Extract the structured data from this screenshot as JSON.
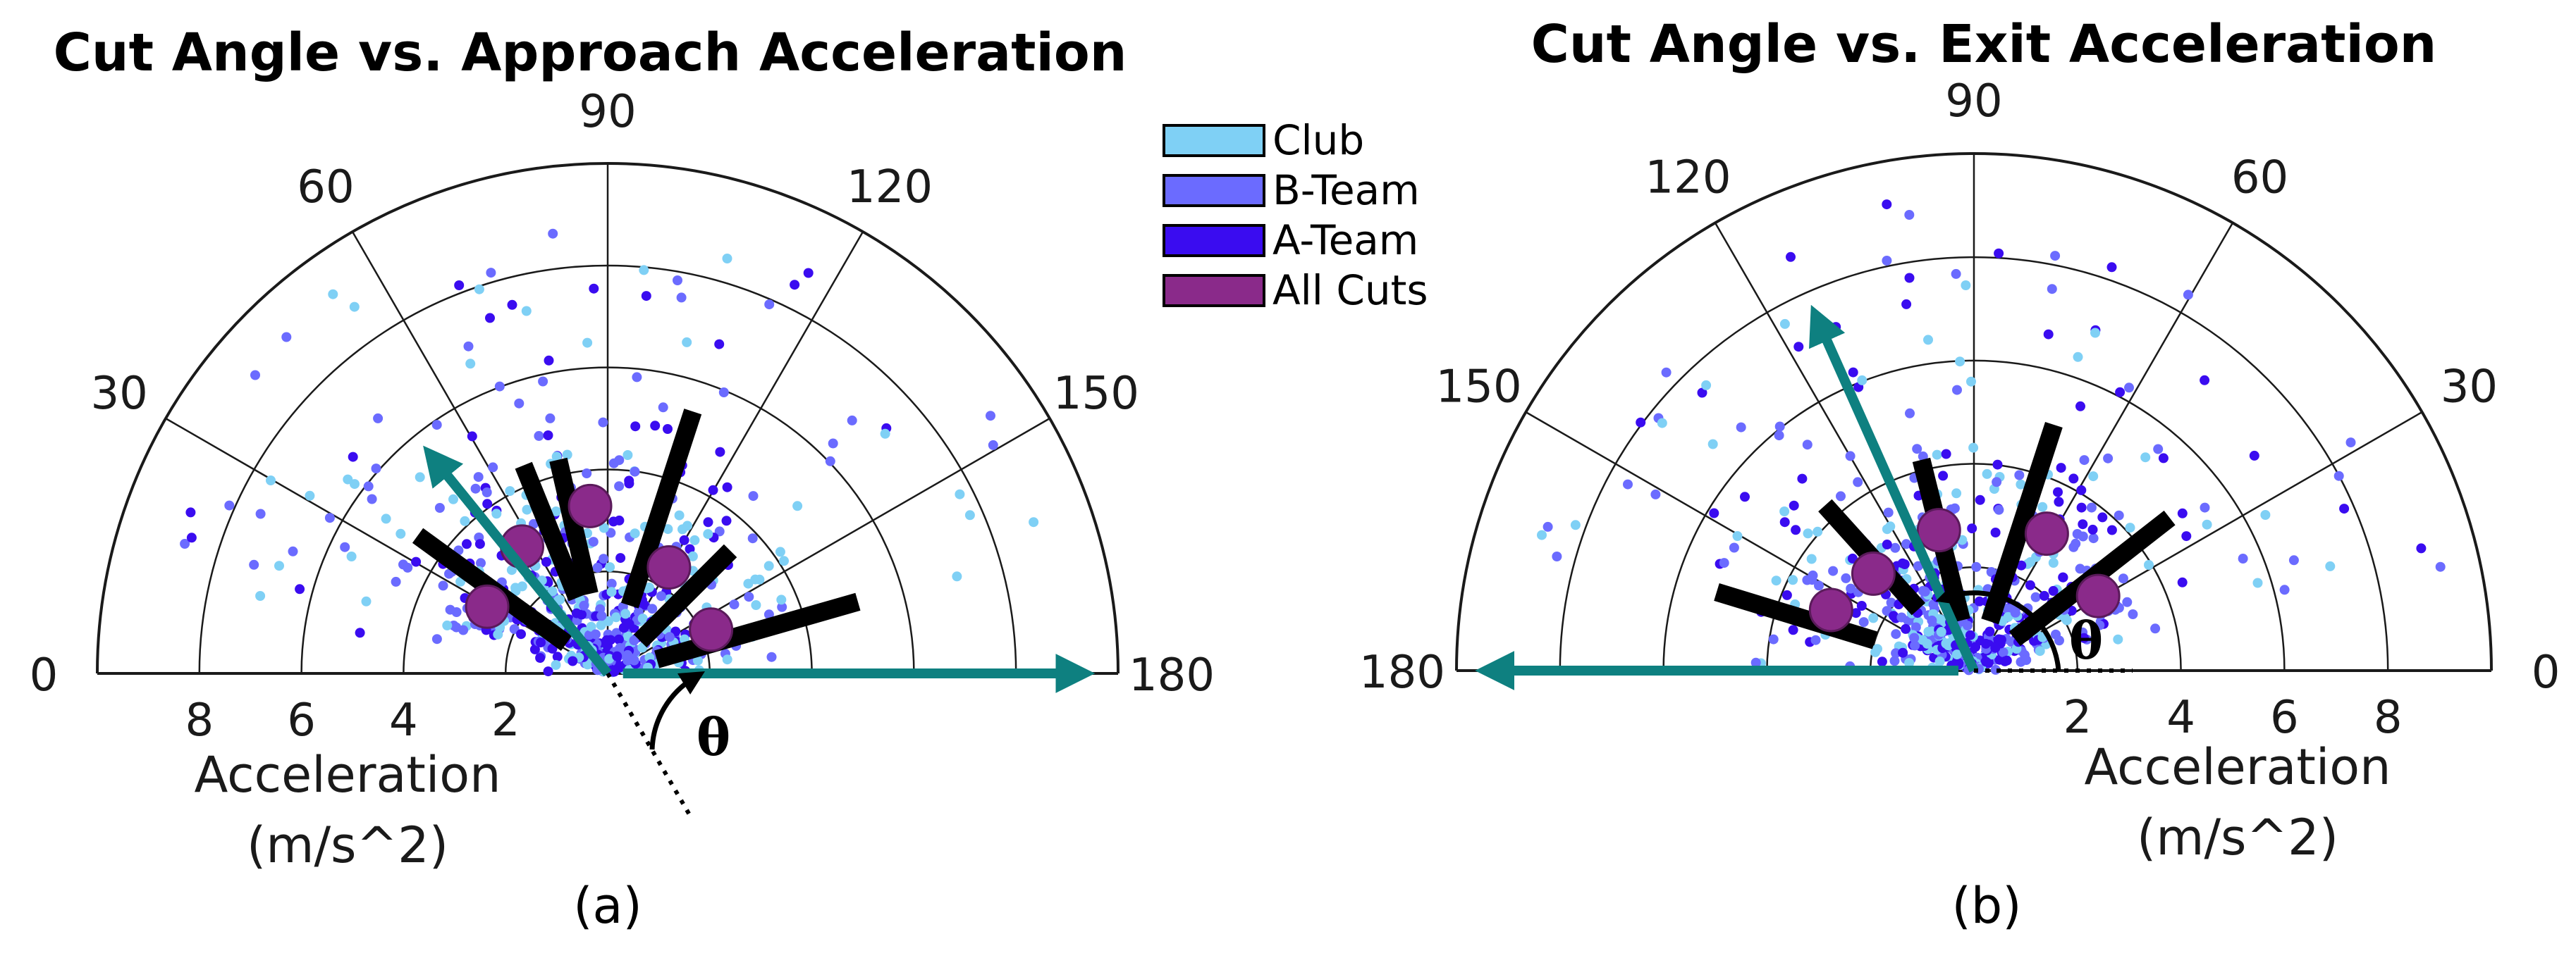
{
  "chart_data": [
    {
      "panel_label": "(a)",
      "type": "scatter",
      "projection": "polar-half",
      "title": "Cut Angle vs. Approach Acceleration",
      "angle_ticks": [
        "0",
        "30",
        "60",
        "90",
        "120",
        "150",
        "180"
      ],
      "radial_ticks": [
        "2",
        "4",
        "6",
        "8"
      ],
      "radial_label_line1": "Acceleration",
      "radial_label_line2": "(m/s^2)",
      "rmax": 10,
      "orientation": "angle-0-left",
      "theta_symbol": "θ",
      "colors": {
        "club": "#7fd0f5",
        "bteam": "#6b6bff",
        "ateam": "#3a0cf0",
        "allcuts": "#8a2a8a",
        "arrow": "#0e8080"
      },
      "all_cuts_means": [
        {
          "angle": 29,
          "r": 2.7
        },
        {
          "angle": 56,
          "r": 3.0
        },
        {
          "angle": 84,
          "r": 3.3
        },
        {
          "angle": 120,
          "r": 2.4
        },
        {
          "angle": 157,
          "r": 2.2
        }
      ],
      "spread_bars": [
        {
          "angle": 36,
          "r0": 1.0,
          "r1": 4.6
        },
        {
          "angle": 68,
          "r0": 1.6,
          "r1": 4.4
        },
        {
          "angle": 77,
          "r0": 1.6,
          "r1": 4.3
        },
        {
          "angle": 108,
          "r0": 1.4,
          "r1": 5.4
        },
        {
          "angle": 135,
          "r0": 0.9,
          "r1": 3.4
        },
        {
          "angle": 164,
          "r0": 1.0,
          "r1": 5.1
        }
      ],
      "arrows": [
        {
          "angle": 51,
          "r0": 0,
          "r1": 5.4
        },
        {
          "angle": 180,
          "r0": 0.3,
          "r1": 9.2
        }
      ]
    },
    {
      "panel_label": "(b)",
      "type": "scatter",
      "projection": "polar-half",
      "title": "Cut Angle vs. Exit Acceleration",
      "angle_ticks": [
        "0",
        "30",
        "60",
        "90",
        "120",
        "150",
        "180"
      ],
      "radial_ticks": [
        "2",
        "4",
        "6",
        "8"
      ],
      "radial_label_line1": "Acceleration",
      "radial_label_line2": "(m/s^2)",
      "rmax": 10,
      "orientation": "angle-0-right",
      "theta_symbol": "θ",
      "colors": {
        "club": "#7fd0f5",
        "bteam": "#6b6bff",
        "ateam": "#3a0cf0",
        "allcuts": "#8a2a8a",
        "arrow": "#0e8080"
      },
      "all_cuts_means": [
        {
          "angle": 31,
          "r": 2.8
        },
        {
          "angle": 62,
          "r": 3.0
        },
        {
          "angle": 104,
          "r": 2.8
        },
        {
          "angle": 136,
          "r": 2.7
        },
        {
          "angle": 157,
          "r": 3.0
        }
      ],
      "spread_bars": [
        {
          "angle": 38,
          "r0": 1.0,
          "r1": 4.8
        },
        {
          "angle": 72,
          "r0": 1.0,
          "r1": 5.0
        },
        {
          "angle": 104,
          "r0": 1.0,
          "r1": 4.2
        },
        {
          "angle": 132,
          "r0": 1.6,
          "r1": 4.3
        },
        {
          "angle": 163,
          "r0": 2.0,
          "r1": 5.2
        }
      ],
      "arrows": [
        {
          "angle": 114,
          "r0": 0,
          "r1": 7.4
        },
        {
          "angle": 180,
          "r0": 0.3,
          "r1": 9.3
        }
      ]
    }
  ],
  "legend": {
    "placement": "top-center",
    "items": [
      {
        "label": "Club",
        "color": "#7fd0f5"
      },
      {
        "label": "B-Team",
        "color": "#6b6bff"
      },
      {
        "label": "A-Team",
        "color": "#3a0cf0"
      },
      {
        "label": "All Cuts",
        "color": "#8a2a8a"
      }
    ]
  }
}
